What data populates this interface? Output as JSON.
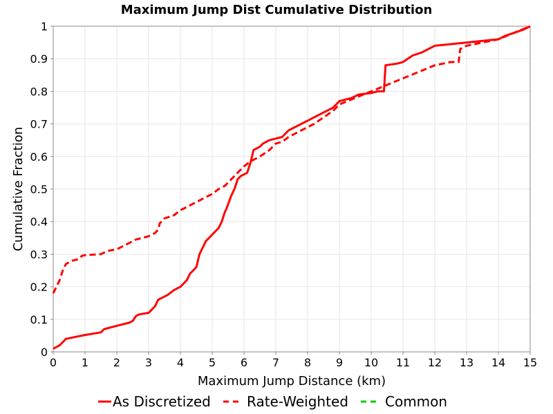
{
  "chart_data": {
    "type": "line",
    "title": "Maximum Jump Dist Cumulative Distribution",
    "xlabel": "Maximum Jump Distance (km)",
    "ylabel": "Cumulative Fraction",
    "xlim": [
      0,
      15
    ],
    "ylim": [
      0,
      1
    ],
    "x_ticks": [
      "0",
      "1",
      "2",
      "3",
      "4",
      "5",
      "6",
      "7",
      "8",
      "9",
      "10",
      "11",
      "12",
      "13",
      "14",
      "15"
    ],
    "y_ticks": [
      "0",
      "0.1",
      "0.2",
      "0.3",
      "0.4",
      "0.5",
      "0.6",
      "0.7",
      "0.8",
      "0.9",
      "1"
    ],
    "grid": true,
    "legend_position": "bottom",
    "series": [
      {
        "name": "As Discretized",
        "color": "#ff0000",
        "dash": "solid",
        "x": [
          0.0,
          0.2,
          0.4,
          0.5,
          0.8,
          1.0,
          1.5,
          1.6,
          2.0,
          2.2,
          2.4,
          2.5,
          2.6,
          2.7,
          3.0,
          3.2,
          3.3,
          3.4,
          3.6,
          3.8,
          4.0,
          4.2,
          4.3,
          4.4,
          4.5,
          4.55,
          4.6,
          4.7,
          4.8,
          4.9,
          5.0,
          5.2,
          5.3,
          5.4,
          5.45,
          5.6,
          5.7,
          5.8,
          5.9,
          6.1,
          6.2,
          6.25,
          6.3,
          6.5,
          6.6,
          6.8,
          7.0,
          7.2,
          7.4,
          7.6,
          7.8,
          8.0,
          8.2,
          8.4,
          8.6,
          8.8,
          9.0,
          9.2,
          9.4,
          9.6,
          10.0,
          10.2,
          10.4,
          10.45,
          10.8,
          11.0,
          11.3,
          11.6,
          12.0,
          12.5,
          13.0,
          13.5,
          14.0,
          14.2,
          14.5,
          14.8,
          15.0
        ],
        "y": [
          0.01,
          0.02,
          0.04,
          0.042,
          0.048,
          0.052,
          0.06,
          0.07,
          0.08,
          0.085,
          0.09,
          0.095,
          0.11,
          0.115,
          0.12,
          0.14,
          0.16,
          0.165,
          0.175,
          0.19,
          0.2,
          0.22,
          0.24,
          0.25,
          0.26,
          0.28,
          0.3,
          0.32,
          0.34,
          0.35,
          0.36,
          0.38,
          0.4,
          0.43,
          0.44,
          0.48,
          0.5,
          0.53,
          0.54,
          0.55,
          0.58,
          0.6,
          0.62,
          0.63,
          0.64,
          0.65,
          0.655,
          0.66,
          0.68,
          0.69,
          0.7,
          0.71,
          0.72,
          0.73,
          0.74,
          0.75,
          0.77,
          0.775,
          0.78,
          0.79,
          0.795,
          0.8,
          0.8,
          0.88,
          0.885,
          0.89,
          0.91,
          0.92,
          0.94,
          0.945,
          0.95,
          0.955,
          0.96,
          0.97,
          0.98,
          0.99,
          1.0
        ]
      },
      {
        "name": "Rate-Weighted",
        "color": "#ff0000",
        "dash": "dashed",
        "x": [
          0.0,
          0.05,
          0.1,
          0.2,
          0.3,
          0.4,
          0.5,
          0.6,
          0.8,
          0.9,
          1.0,
          1.5,
          1.7,
          2.0,
          2.2,
          2.4,
          2.6,
          2.8,
          3.0,
          3.2,
          3.3,
          3.35,
          3.5,
          3.8,
          4.0,
          4.2,
          4.4,
          4.6,
          4.8,
          5.0,
          5.2,
          5.4,
          5.6,
          5.8,
          6.0,
          6.2,
          6.5,
          6.8,
          7.0,
          7.2,
          7.4,
          7.6,
          7.8,
          8.0,
          8.2,
          8.5,
          8.8,
          9.0,
          9.5,
          10.0,
          10.5,
          11.0,
          11.5,
          12.0,
          12.5,
          12.75,
          12.8,
          13.0,
          13.5,
          14.0,
          14.5,
          15.0
        ],
        "y": [
          0.18,
          0.19,
          0.2,
          0.22,
          0.25,
          0.27,
          0.275,
          0.28,
          0.285,
          0.295,
          0.297,
          0.3,
          0.31,
          0.315,
          0.325,
          0.335,
          0.345,
          0.35,
          0.355,
          0.365,
          0.375,
          0.395,
          0.41,
          0.42,
          0.435,
          0.445,
          0.455,
          0.465,
          0.475,
          0.485,
          0.5,
          0.51,
          0.53,
          0.55,
          0.57,
          0.585,
          0.6,
          0.62,
          0.64,
          0.645,
          0.66,
          0.67,
          0.68,
          0.69,
          0.7,
          0.72,
          0.74,
          0.76,
          0.78,
          0.8,
          0.82,
          0.84,
          0.86,
          0.88,
          0.89,
          0.89,
          0.93,
          0.94,
          0.95,
          0.96,
          0.98,
          1.0
        ]
      },
      {
        "name": "Common",
        "color": "#00cc00",
        "dash": "dashed",
        "x": [],
        "y": []
      }
    ]
  }
}
